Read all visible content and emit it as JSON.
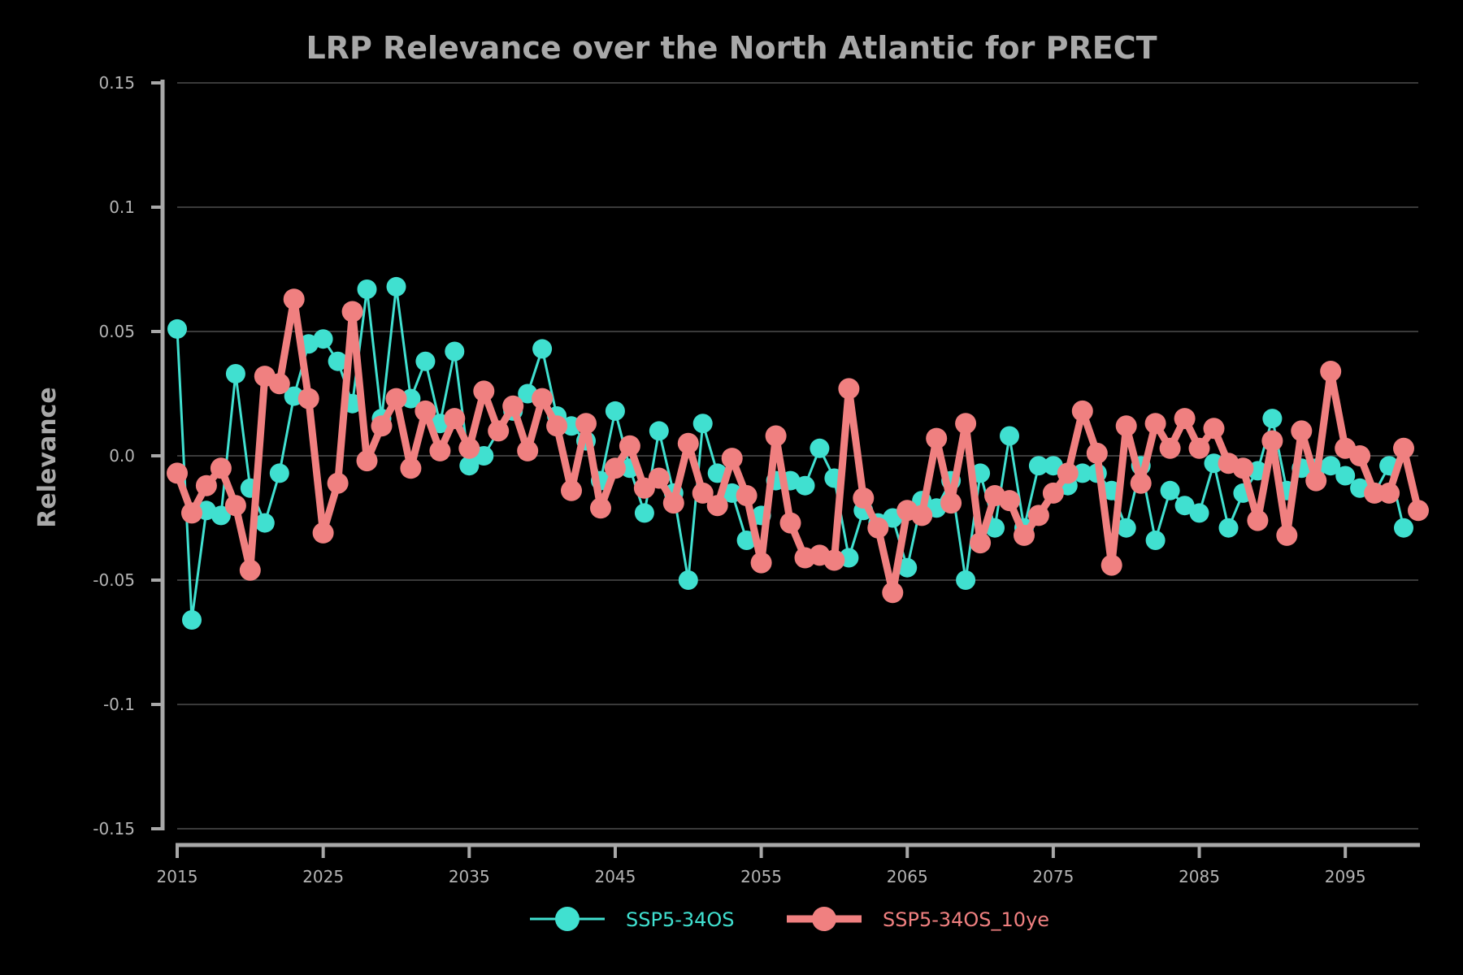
{
  "chart_data": {
    "type": "line",
    "title": "LRP Relevance over the North Atlantic for PRECT",
    "xlabel": "",
    "ylabel": "Relevance",
    "xlim": [
      2015,
      2100
    ],
    "ylim": [
      -0.15,
      0.15
    ],
    "x_ticks": [
      2015,
      2025,
      2035,
      2045,
      2055,
      2065,
      2075,
      2085,
      2095
    ],
    "y_ticks": [
      {
        "value": 0.15,
        "label": "0.15"
      },
      {
        "value": 0.1,
        "label": "0.1"
      },
      {
        "value": 0.05,
        "label": "0.05"
      },
      {
        "value": 0.0,
        "label": "0.0"
      },
      {
        "value": -0.05,
        "label": "-0.05"
      },
      {
        "value": -0.1,
        "label": "-0.1"
      },
      {
        "value": -0.15,
        "label": "-0.15"
      }
    ],
    "grid": "horizontal",
    "legend_position": "bottom-center",
    "colors": {
      "background": "#000000",
      "axis": "#a8a8a8",
      "grid": "#3a3a3a",
      "text": "#a8a8a8"
    },
    "x_start": 2015,
    "series": [
      {
        "name": "SSP5-34OS",
        "color": "#40e0d0",
        "values": [
          0.051,
          -0.066,
          -0.022,
          -0.024,
          0.033,
          -0.013,
          -0.027,
          -0.007,
          0.024,
          0.045,
          0.047,
          0.038,
          0.021,
          0.067,
          0.015,
          0.068,
          0.023,
          0.038,
          0.013,
          0.042,
          -0.004,
          0.0,
          0.01,
          0.018,
          0.025,
          0.043,
          0.016,
          0.012,
          0.006,
          -0.01,
          0.018,
          -0.005,
          -0.023,
          0.01,
          -0.015,
          -0.05,
          0.013,
          -0.007,
          -0.015,
          -0.034,
          -0.024,
          -0.01,
          -0.01,
          -0.012,
          0.003,
          -0.009,
          -0.041,
          -0.022,
          -0.027,
          -0.025,
          -0.045,
          -0.018,
          -0.021,
          -0.01,
          -0.05,
          -0.007,
          -0.029,
          0.008,
          -0.029,
          -0.004,
          -0.004,
          -0.012,
          -0.007,
          -0.007,
          -0.014,
          -0.029,
          -0.004,
          -0.034,
          -0.014,
          -0.02,
          -0.023,
          -0.003,
          -0.029,
          -0.015,
          -0.006,
          0.015,
          -0.014,
          -0.005,
          -0.005,
          -0.004,
          -0.008,
          -0.013,
          -0.015,
          -0.004,
          -0.029
        ]
      },
      {
        "name": "SSP5-34OS_10ye",
        "color": "#f08080",
        "values": [
          -0.007,
          -0.023,
          -0.012,
          -0.005,
          -0.02,
          -0.046,
          0.032,
          0.029,
          0.063,
          0.023,
          -0.031,
          -0.011,
          0.058,
          -0.002,
          0.012,
          0.023,
          -0.005,
          0.018,
          0.002,
          0.015,
          0.003,
          0.026,
          0.01,
          0.02,
          0.002,
          0.023,
          0.012,
          -0.014,
          0.013,
          -0.021,
          -0.005,
          0.004,
          -0.013,
          -0.009,
          -0.019,
          0.005,
          -0.015,
          -0.02,
          -0.001,
          -0.016,
          -0.043,
          0.008,
          -0.027,
          -0.041,
          -0.04,
          -0.042,
          0.027,
          -0.017,
          -0.029,
          -0.055,
          -0.022,
          -0.024,
          0.007,
          -0.019,
          0.013,
          -0.035,
          -0.016,
          -0.018,
          -0.032,
          -0.024,
          -0.015,
          -0.007,
          0.018,
          0.001,
          -0.044,
          0.012,
          -0.011,
          0.013,
          0.003,
          0.015,
          0.003,
          0.011,
          -0.003,
          -0.005,
          -0.026,
          0.006,
          -0.032,
          0.01,
          -0.01,
          0.034,
          0.003,
          0.0,
          -0.015,
          -0.015,
          0.003,
          -0.022
        ]
      }
    ]
  }
}
